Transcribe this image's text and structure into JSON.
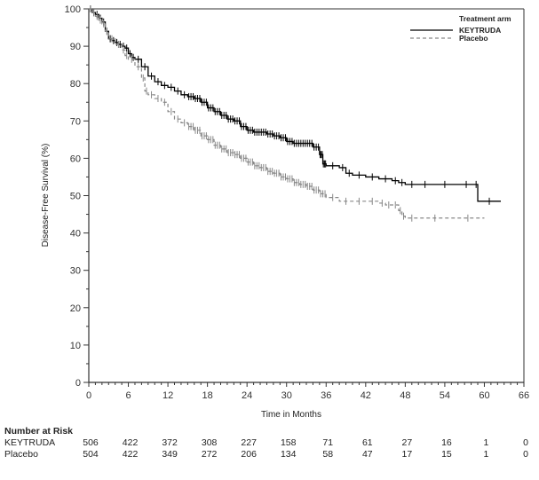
{
  "chart_data": {
    "type": "line",
    "subtype": "kaplan-meier",
    "title": "",
    "xlabel": "Time in Months",
    "ylabel": "Disease-Free Survival (%)",
    "xlim": [
      0,
      66
    ],
    "ylim": [
      0,
      100
    ],
    "xticks": [
      "0",
      "6",
      "12",
      "18",
      "24",
      "30",
      "36",
      "42",
      "48",
      "54",
      "60",
      "66"
    ],
    "yticks": [
      "0",
      "10",
      "20",
      "30",
      "40",
      "50",
      "60",
      "70",
      "80",
      "90",
      "100"
    ],
    "grid": false,
    "legend": {
      "title": "Treatment arm",
      "placement": "top-right",
      "entries": [
        "KEYTRUDA",
        "Placebo"
      ]
    },
    "series": [
      {
        "name": "KEYTRUDA",
        "color": "#000000",
        "style": "solid",
        "x": [
          0,
          0.5,
          1.0,
          1.5,
          2.0,
          2.5,
          3.0,
          3.5,
          4.0,
          4.5,
          5.0,
          5.5,
          6.0,
          6.5,
          7.0,
          8.0,
          9.0,
          10.0,
          11.0,
          12.0,
          13.0,
          14.0,
          15.0,
          16.0,
          17.0,
          18.0,
          19.0,
          20.0,
          21.0,
          22.0,
          23.0,
          24.0,
          25.0,
          26.0,
          27.0,
          28.0,
          29.0,
          30.0,
          31.0,
          32.0,
          33.0,
          34.0,
          35.0,
          35.5,
          36.0,
          38.0,
          39.0,
          40.0,
          42.0,
          44.0,
          46.0,
          47.0,
          48.0,
          50.0,
          52.0,
          56.0,
          58.5,
          59.0,
          62.5
        ],
        "y": [
          100,
          99,
          98.5,
          97.5,
          96.5,
          94,
          92,
          91.5,
          91,
          90.5,
          90,
          89.5,
          88,
          87,
          86.5,
          84.5,
          82,
          80.5,
          79.5,
          79,
          78,
          77,
          76.5,
          76,
          75,
          73.5,
          72.5,
          71.5,
          70.5,
          70,
          68.5,
          67.5,
          67,
          67,
          66.5,
          66,
          65.5,
          64.5,
          64,
          64,
          64,
          63,
          61,
          58.5,
          58,
          57.5,
          56,
          55.5,
          55,
          54.5,
          54,
          53.5,
          53,
          53,
          53,
          53,
          53,
          48.5,
          48.5
        ],
        "censor_region": "dense ticks throughout"
      },
      {
        "name": "Placebo",
        "color": "#888888",
        "style": "dashed",
        "x": [
          0,
          0.5,
          1.0,
          1.5,
          2.0,
          2.5,
          3.0,
          4.0,
          5.0,
          5.5,
          6.0,
          7.0,
          8.0,
          8.5,
          9.0,
          10.0,
          11.0,
          12.0,
          13.0,
          14.0,
          15.0,
          16.0,
          17.0,
          18.0,
          19.0,
          20.0,
          21.0,
          22.0,
          23.0,
          24.0,
          25.0,
          26.0,
          27.0,
          28.0,
          29.0,
          30.0,
          31.0,
          32.0,
          33.0,
          34.0,
          35.0,
          36.0,
          38.0,
          40.0,
          42.0,
          44.0,
          45.0,
          46.0,
          47.0,
          47.5,
          48.0,
          50.0,
          55.0,
          60.0
        ],
        "y": [
          100,
          99,
          98,
          97,
          96,
          94,
          92,
          90.5,
          89,
          87.5,
          86.5,
          84.5,
          81.5,
          78,
          77,
          76,
          75,
          72.5,
          70.5,
          69.5,
          68.5,
          67.5,
          66,
          65,
          63.5,
          62.5,
          61.5,
          61,
          60,
          59,
          58,
          57.5,
          56.5,
          56,
          55,
          54.5,
          53.5,
          53,
          52.5,
          51.5,
          50.5,
          49.5,
          48.5,
          48.5,
          48.5,
          48,
          47.5,
          47.5,
          46,
          44.5,
          44,
          44,
          44,
          44
        ],
        "censor_region": "dense ticks throughout"
      }
    ]
  },
  "risk_table": {
    "title": "Number at Risk",
    "times": [
      0,
      6,
      12,
      18,
      24,
      30,
      36,
      42,
      48,
      54,
      60,
      66
    ],
    "rows": [
      {
        "name": "KEYTRUDA",
        "values": [
          "506",
          "422",
          "372",
          "308",
          "227",
          "158",
          "71",
          "61",
          "27",
          "16",
          "1",
          "0"
        ]
      },
      {
        "name": "Placebo",
        "values": [
          "504",
          "422",
          "349",
          "272",
          "206",
          "134",
          "58",
          "47",
          "17",
          "15",
          "1",
          "0"
        ]
      }
    ]
  }
}
